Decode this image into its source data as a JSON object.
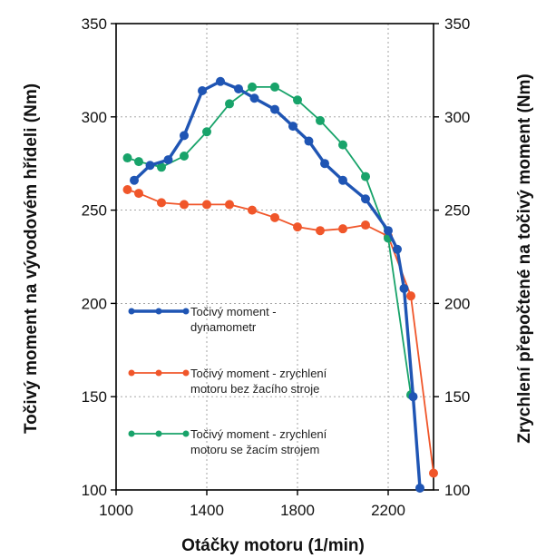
{
  "chart_data": {
    "type": "line",
    "xlabel": "Otáčky motoru (1/min)",
    "ylabel_left": "Točivý moment na vývodovém hřídeli (Nm)",
    "ylabel_right": "Zrychlení přepočtené na točivý moment (Nm)",
    "xlim": [
      1000,
      2400
    ],
    "ylim": [
      100,
      350
    ],
    "x_ticks": [
      1000,
      1400,
      1800,
      2200
    ],
    "y_ticks": [
      100,
      150,
      200,
      250,
      300,
      350
    ],
    "grid": true,
    "legend_position": "left-lower",
    "series": [
      {
        "name": "Točivý moment - dynamometr",
        "legend_lines": [
          "Točivý moment -",
          "dynamometr"
        ],
        "color": "#1f55b4",
        "x": [
          1080,
          1150,
          1230,
          1300,
          1380,
          1460,
          1540,
          1610,
          1700,
          1780,
          1850,
          1920,
          2000,
          2100,
          2200,
          2240,
          2270,
          2310,
          2340
        ],
        "y": [
          266,
          274,
          277,
          290,
          314,
          319,
          315,
          310,
          304,
          295,
          287,
          275,
          266,
          256,
          239,
          229,
          208,
          150,
          101
        ]
      },
      {
        "name": "Točivý moment - zrychlení motoru bez žacího stroje",
        "legend_lines": [
          "Točivý moment - zrychlení",
          "motoru bez žacího stroje"
        ],
        "color": "#f0562a",
        "x": [
          1050,
          1100,
          1200,
          1300,
          1400,
          1500,
          1600,
          1700,
          1800,
          1900,
          2000,
          2100,
          2200,
          2300,
          2400
        ],
        "y": [
          261,
          259,
          254,
          253,
          253,
          253,
          250,
          246,
          241,
          239,
          240,
          242,
          236,
          204,
          109
        ]
      },
      {
        "name": "Točivý moment - zrychlení motoru se žacím strojem",
        "legend_lines": [
          "Točivý moment - zrychlení",
          "motoru se žacím strojem"
        ],
        "color": "#18a36a",
        "x": [
          1050,
          1100,
          1200,
          1300,
          1400,
          1500,
          1600,
          1700,
          1800,
          1900,
          2000,
          2100,
          2200,
          2300
        ],
        "y": [
          278,
          276,
          273,
          279,
          292,
          307,
          316,
          316,
          309,
          298,
          285,
          268,
          235,
          151
        ]
      }
    ]
  }
}
